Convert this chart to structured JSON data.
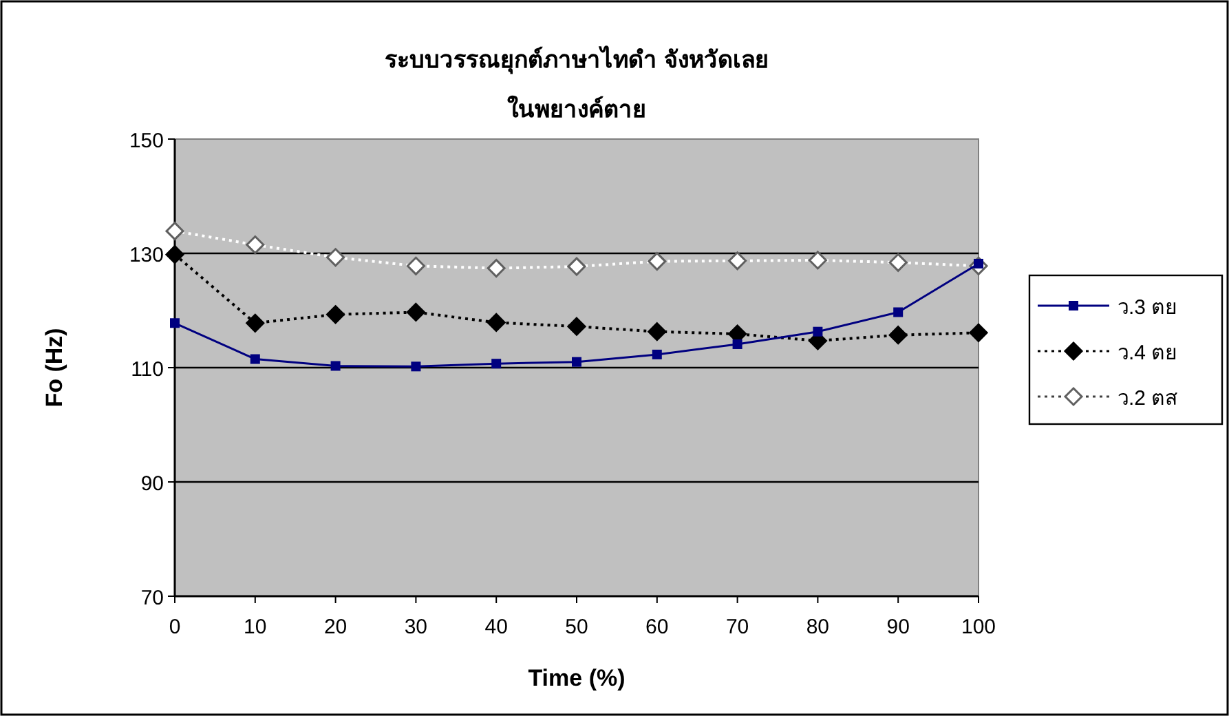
{
  "chart_data": {
    "type": "line",
    "title": "ระบบวรรณยุกต์ภาษาไทดำ จังหวัดเลย",
    "subtitle": "ในพยางค์ตาย",
    "xlabel": "Time (%)",
    "ylabel": "Fo (Hz)",
    "x": [
      0,
      10,
      20,
      30,
      40,
      50,
      60,
      70,
      80,
      90,
      100
    ],
    "xlim": [
      0,
      100
    ],
    "xticks": [
      0,
      10,
      20,
      30,
      40,
      50,
      60,
      70,
      80,
      90,
      100
    ],
    "ylim": [
      70,
      150
    ],
    "yticks": [
      70,
      90,
      110,
      130,
      150
    ],
    "grid": "y",
    "legend": "right",
    "series": [
      {
        "name": "ว.3 ตย",
        "color": "#000080",
        "marker": "square",
        "line_style": "solid",
        "values": [
          117.8,
          111.5,
          110.3,
          110.2,
          110.7,
          111,
          112.3,
          114.1,
          116.3,
          119.7,
          128.2
        ]
      },
      {
        "name": "ว.4 ตย",
        "color": "#000000",
        "marker": "diamond",
        "line_style": "dotted",
        "values": [
          129.8,
          117.8,
          119.3,
          119.7,
          117.9,
          117.2,
          116.3,
          115.9,
          114.7,
          115.7,
          116.1
        ]
      },
      {
        "name": "ว.2 ตส",
        "color": "#ffffff",
        "marker": "diamond",
        "line_style": "dotted",
        "values": [
          133.9,
          131.5,
          129.3,
          127.8,
          127.4,
          127.7,
          128.6,
          128.7,
          128.8,
          128.4,
          127.8
        ]
      }
    ]
  }
}
